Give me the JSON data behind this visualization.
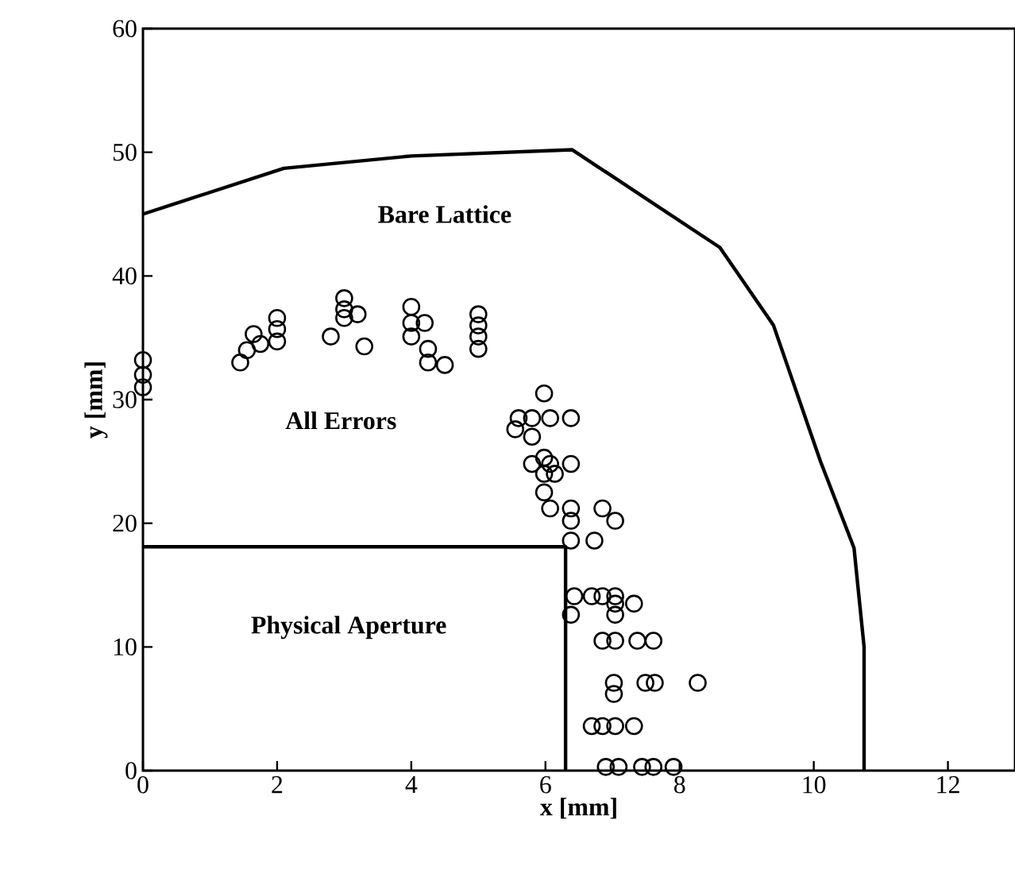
{
  "chart_data": {
    "type": "scatter",
    "xlabel": "x [mm]",
    "ylabel": "y [mm]",
    "xlim": [
      0,
      13
    ],
    "ylim": [
      0,
      60
    ],
    "xticks": [
      0,
      2,
      4,
      6,
      8,
      10,
      12
    ],
    "yticks": [
      0,
      10,
      20,
      30,
      40,
      50,
      60
    ],
    "grid": false,
    "series": [
      {
        "type": "line",
        "color": "#000000",
        "marker": "none",
        "line_style": "solid",
        "x": [
          0,
          2.1,
          4.0,
          6.4,
          8.6,
          9.4,
          10.1,
          10.6,
          10.75,
          10.75
        ],
        "values": [
          45,
          48.7,
          49.7,
          50.2,
          42.3,
          36,
          25,
          18,
          10,
          0
        ]
      },
      {
        "type": "line",
        "color": "#000000",
        "marker": "none",
        "line_style": "solid",
        "x": [
          0,
          6.3,
          6.3
        ],
        "values": [
          18.1,
          18.1,
          0
        ]
      },
      {
        "color": "#000000",
        "marker": "circle",
        "x": [
          0,
          0,
          0,
          1.45,
          1.55,
          1.65,
          1.75,
          2.0,
          2.0,
          2.0,
          2.8,
          3.0,
          3.0,
          3.0,
          3.2,
          3.3,
          4.0,
          4.0,
          4.0,
          4.2,
          4.25,
          4.25,
          4.5,
          5.0,
          5.0,
          5.0,
          5.0,
          5.98,
          5.6,
          5.8,
          6.07,
          6.38,
          5.55,
          5.8,
          5.8,
          6.07,
          6.38,
          5.98,
          5.98,
          6.14,
          5.98,
          6.07,
          6.38,
          6.85,
          6.38,
          7.04,
          6.38,
          6.73,
          6.43,
          6.69,
          6.85,
          7.04,
          7.04,
          7.32,
          6.38,
          7.04,
          6.85,
          7.04,
          7.37,
          7.61,
          7.02,
          7.49,
          7.63,
          8.27,
          7.02,
          6.69,
          6.85,
          7.04,
          7.32,
          6.9,
          7.09,
          7.44,
          7.61,
          7.91
        ],
        "values": [
          33.2,
          32.0,
          31.0,
          33.0,
          34.0,
          35.3,
          34.5,
          36.6,
          35.7,
          34.7,
          35.1,
          38.2,
          37.3,
          36.6,
          36.9,
          34.3,
          37.5,
          36.2,
          35.1,
          36.2,
          34.1,
          33.0,
          32.8,
          36.9,
          36.0,
          35.1,
          34.1,
          30.5,
          28.5,
          28.5,
          28.5,
          28.5,
          27.6,
          27.0,
          24.8,
          24.8,
          24.8,
          25.3,
          24.0,
          24.0,
          22.5,
          21.2,
          21.2,
          21.2,
          20.2,
          20.2,
          18.6,
          18.6,
          14.1,
          14.1,
          14.1,
          14.1,
          13.5,
          13.5,
          12.6,
          12.6,
          10.5,
          10.5,
          10.5,
          10.5,
          7.1,
          7.1,
          7.1,
          7.1,
          6.2,
          3.6,
          3.6,
          3.6,
          3.6,
          0.3,
          0.3,
          0.3,
          0.3,
          0.3
        ]
      }
    ],
    "annotations": [
      "Bare Lattice",
      "All Errors",
      "Physical Aperture"
    ]
  }
}
